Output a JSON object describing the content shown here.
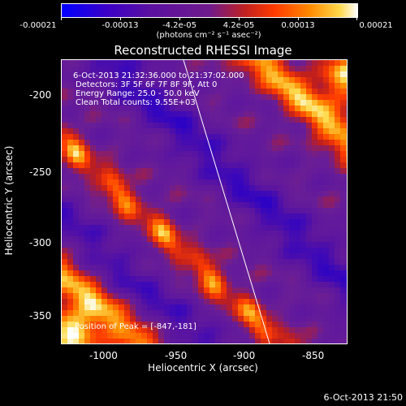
{
  "colorbar": {
    "tick_labels": [
      "-0.00021",
      "-0.00013",
      "-4.2e-05",
      "4.2e-05",
      "0.00013",
      "0.00021"
    ],
    "unit": "(photons cm⁻² s⁻¹ asec⁻²)"
  },
  "chart_data": {
    "type": "heatmap",
    "title": "Reconstructed RHESSI Image",
    "xlabel": "Heliocentric X (arcsec)",
    "ylabel": "Heliocentric Y (arcsec)",
    "xlim": [
      -1030,
      -835
    ],
    "ylim": [
      -370,
      -180
    ],
    "x_ticks": [
      "-1000",
      "-950",
      "-900",
      "-850"
    ],
    "y_ticks": [
      "-200",
      "-250",
      "-300",
      "-350"
    ],
    "value_range": [
      -0.00021,
      0.00021
    ],
    "colormap": "blue-purple-red-yellow-white",
    "annotations": {
      "time_range": "6-Oct-2013 21:32:36.000 to 21:37:02.000",
      "detectors": "Detectors: 3F 5F 6F 7F 8F 9F, Att 0",
      "energy": "Energy Range: 25.0 - 50.0 keV",
      "clean": "Clean     Total counts: 9.55E+03",
      "peak": "Position of Peak = [-847,-181]"
    },
    "limb_line": true
  },
  "footer": {
    "timestamp": "6-Oct-2013 21:50"
  }
}
